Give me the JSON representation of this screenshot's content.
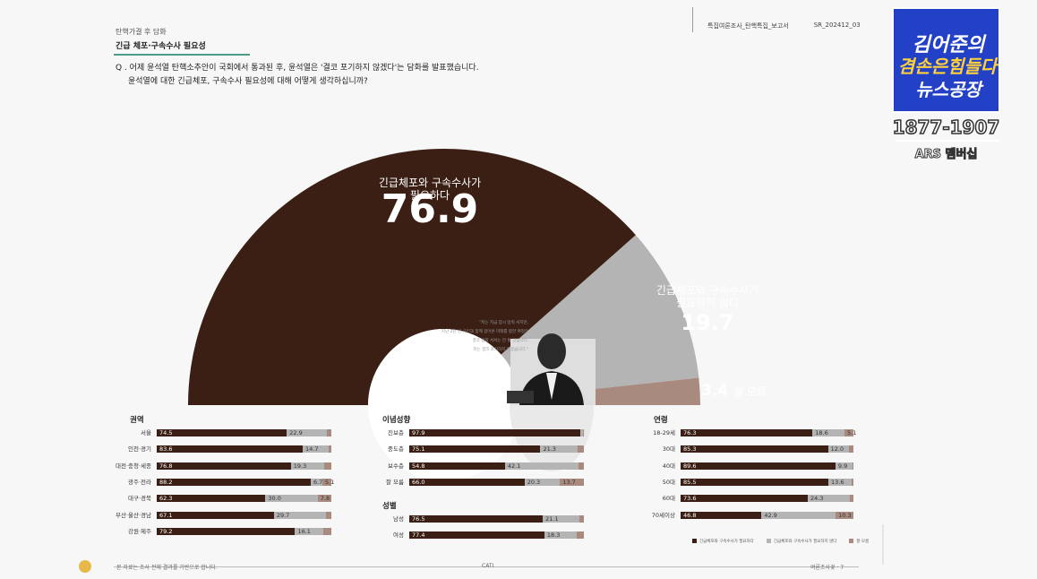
{
  "header": {
    "subtitle": "탄핵가결 후 담화",
    "title": "긴급 체포·구속수사 필요성",
    "doc_name": "특집여론조사_탄핵특집_보고서",
    "doc_code": "SR_202412_03"
  },
  "question": {
    "line1": "Q . 어제 윤석열 탄핵소추안이 국회에서 통과된 후, 윤석열은 '결코 포기하지 않겠다'는 담화를 발표했습니다.",
    "line2": "윤석열에 대한 긴급체포, 구속수사 필요성에 대해 어떻게 생각하십니까?"
  },
  "colors": {
    "need": "#3b1f15",
    "not_need": "#b4b4b4",
    "unknown": "#a98a7f"
  },
  "chart_data": [
    {
      "type": "pie",
      "shape": "semicircle",
      "slices": [
        {
          "label_line1": "긴급체포와 구속수사가",
          "label_line2": "필요하다",
          "value": 76.9,
          "value_text": "76.9"
        },
        {
          "label_line1": "긴급체포와 구속수사가",
          "label_line2": "필요하지 않다",
          "value": 19.7,
          "value_text": "19.7"
        },
        {
          "label_line1": "잘 모름",
          "label_line2": "",
          "value": 3.4,
          "value_text": "3.4"
        }
      ]
    },
    {
      "type": "bar",
      "stacked": true,
      "horizontal": true,
      "title": "권역",
      "categories": [
        "서울",
        "인천·경기",
        "대전·충청·세종",
        "광주·전라",
        "대구·경북",
        "부산·울산·경남",
        "강원·제주"
      ],
      "series": [
        {
          "values": [
            74.5,
            83.6,
            76.8,
            88.2,
            62.3,
            67.1,
            79.2
          ],
          "labels": [
            "74.5",
            "83.6",
            "76.8",
            "88.2",
            "62.3",
            "67.1",
            "79.2"
          ]
        },
        {
          "values": [
            22.9,
            14.7,
            19.3,
            6.7,
            30.0,
            29.7,
            16.1
          ],
          "labels": [
            "22.9",
            "14.7",
            "19.3",
            "6.7",
            "30.0",
            "29.7",
            "16.1"
          ]
        },
        {
          "values": [
            2.6,
            1.7,
            3.9,
            5.1,
            7.8,
            3.2,
            4.7
          ],
          "labels": [
            "",
            "",
            "",
            "5.1",
            "7.8",
            "",
            ""
          ]
        }
      ]
    },
    {
      "type": "bar",
      "stacked": true,
      "horizontal": true,
      "title": "이념성향",
      "categories": [
        "진보층",
        "중도층",
        "보수층",
        "잘 모름"
      ],
      "series": [
        {
          "values": [
            97.9,
            75.1,
            54.8,
            66.0
          ],
          "labels": [
            "97.9",
            "75.1",
            "54.8",
            "66.0"
          ]
        },
        {
          "values": [
            1.4,
            21.3,
            42.1,
            20.3
          ],
          "labels": [
            "",
            "21.3",
            "42.1",
            "20.3"
          ]
        },
        {
          "values": [
            0.7,
            3.6,
            3.1,
            13.7
          ],
          "labels": [
            "",
            "",
            "",
            "13.7"
          ]
        }
      ]
    },
    {
      "type": "bar",
      "stacked": true,
      "horizontal": true,
      "title": "성별",
      "categories": [
        "남성",
        "여성"
      ],
      "series": [
        {
          "values": [
            76.5,
            77.4
          ],
          "labels": [
            "76.5",
            "77.4"
          ]
        },
        {
          "values": [
            21.1,
            18.3
          ],
          "labels": [
            "21.1",
            "18.3"
          ]
        },
        {
          "values": [
            2.4,
            4.3
          ],
          "labels": [
            "",
            ""
          ]
        }
      ]
    },
    {
      "type": "bar",
      "stacked": true,
      "horizontal": true,
      "title": "연령",
      "categories": [
        "18-29세",
        "30대",
        "40대",
        "50대",
        "60대",
        "70세이상"
      ],
      "series": [
        {
          "values": [
            76.3,
            85.3,
            89.6,
            85.5,
            73.6,
            46.8
          ],
          "labels": [
            "76.3",
            "85.3",
            "89.6",
            "85.5",
            "73.6",
            "46.8"
          ]
        },
        {
          "values": [
            18.6,
            12.0,
            9.9,
            13.6,
            24.3,
            42.9
          ],
          "labels": [
            "18.6",
            "12.0",
            "9.9",
            "13.6",
            "24.3",
            "42.9"
          ]
        },
        {
          "values": [
            5.1,
            2.7,
            0.5,
            0.9,
            2.1,
            10.3
          ],
          "labels": [
            "5.1",
            "",
            "",
            "",
            "",
            "10.3"
          ]
        }
      ]
    }
  ],
  "legend": [
    "긴급체포와 구속수사가 필요하다",
    "긴급체포와 구속수사가 필요하지 않다",
    "잘 모름"
  ],
  "footer": {
    "left": "본 자료는 조사 전체 결과를 기반으로 합니다.",
    "center": "CATI",
    "right": "여론조사꽃 · 7"
  },
  "photo_quote": [
    "\"저는 지금 잠시 멈춰 서지만,",
    "지난 2년 반 국민과 함께 걸어온 미래를 향한 여정은",
    "결코 멈춰 서서는 안 될 것입니다.",
    "저는 결코 포기하지 않겠습니다.\""
  ],
  "channel_logo": {
    "line1": "김어준의",
    "line2": "겸손은힘들다",
    "line3": "뉴스공장"
  },
  "phone": "1877-1907",
  "phone_caption": "ARS 멤버십"
}
